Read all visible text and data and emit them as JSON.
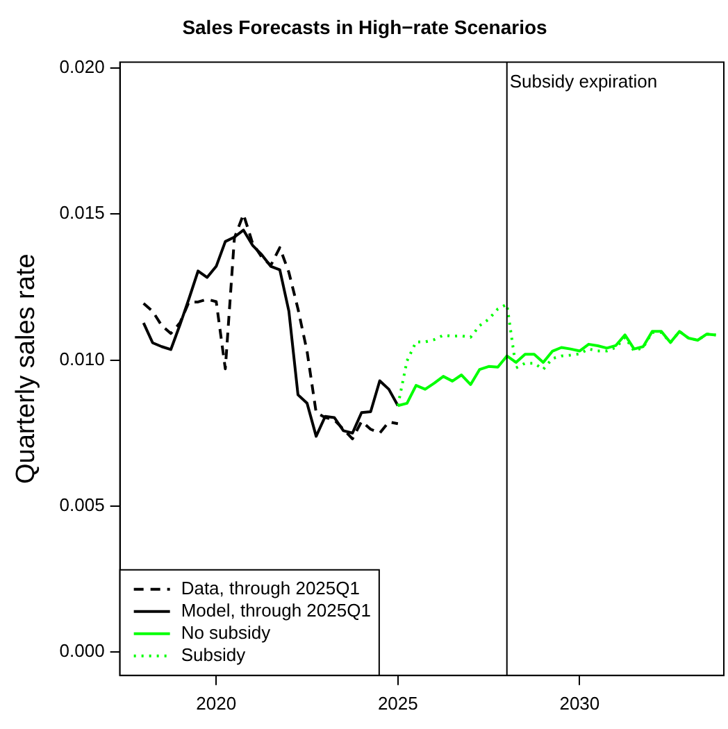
{
  "chart_data": {
    "type": "line",
    "title": "Sales Forecasts in High−rate Scenarios",
    "ylabel": "Quarterly sales rate",
    "xlim": [
      2017.35,
      2033.97
    ],
    "xticks": [
      2020,
      2025,
      2030
    ],
    "ylim": [
      -0.0008,
      0.0202
    ],
    "yticks": [
      {
        "value": 0,
        "label": "0.000"
      },
      {
        "value": 0.005,
        "label": "0.005"
      },
      {
        "value": 0.01,
        "label": "0.010"
      },
      {
        "value": 0.015,
        "label": "0.015"
      },
      {
        "value": 0.02,
        "label": "0.020"
      }
    ],
    "grid": false,
    "legend": "bottom left",
    "marker": "none",
    "ref_lines": [
      {
        "axis": "x",
        "value": 2028,
        "label": "Subsidy expiration",
        "color": "#000000",
        "line_style": "solid"
      }
    ],
    "series": [
      {
        "name": "Data, through 2025Q1",
        "color": "#000000",
        "line_style": "dashed",
        "x": [
          2018,
          2018.25,
          2018.5,
          2018.75,
          2019,
          2019.25,
          2019.5,
          2019.75,
          2020,
          2020.25,
          2020.5,
          2020.75,
          2021,
          2021.25,
          2021.5,
          2021.75,
          2022,
          2022.25,
          2022.5,
          2022.75,
          2023,
          2023.25,
          2023.5,
          2023.75,
          2024,
          2024.25,
          2024.5,
          2024.75,
          2025
        ],
        "values": [
          0.01194,
          0.01167,
          0.01118,
          0.01091,
          0.01127,
          0.01199,
          0.01199,
          0.01208,
          0.012,
          0.0097,
          0.01418,
          0.01499,
          0.014,
          0.01353,
          0.01324,
          0.01385,
          0.013,
          0.01175,
          0.0103,
          0.0082,
          0.00803,
          0.00795,
          0.00763,
          0.0073,
          0.0079,
          0.00763,
          0.0075,
          0.00788,
          0.00782
        ]
      },
      {
        "name": "Model, through 2025Q1",
        "color": "#000000",
        "line_style": "solid",
        "x": [
          2018,
          2018.25,
          2018.5,
          2018.75,
          2019,
          2019.25,
          2019.5,
          2019.75,
          2020,
          2020.25,
          2020.5,
          2020.75,
          2021,
          2021.25,
          2021.5,
          2021.75,
          2022,
          2022.25,
          2022.5,
          2022.75,
          2023,
          2023.25,
          2023.5,
          2023.75,
          2024,
          2024.25,
          2024.5,
          2024.75,
          2025
        ],
        "values": [
          0.01127,
          0.01059,
          0.01046,
          0.01036,
          0.0112,
          0.0121,
          0.01305,
          0.01283,
          0.01321,
          0.01406,
          0.01421,
          0.01445,
          0.01393,
          0.01361,
          0.01321,
          0.01309,
          0.01167,
          0.00881,
          0.00852,
          0.00739,
          0.00807,
          0.00803,
          0.00758,
          0.0075,
          0.0082,
          0.00823,
          0.00929,
          0.009,
          0.00844
        ]
      },
      {
        "name": "No subsidy",
        "color": "#00ff00",
        "line_style": "solid",
        "x": [
          2025,
          2025.25,
          2025.5,
          2025.75,
          2026,
          2026.25,
          2026.5,
          2026.75,
          2027,
          2027.25,
          2027.5,
          2027.75,
          2028,
          2028.25,
          2028.5,
          2028.75,
          2029,
          2029.25,
          2029.5,
          2029.75,
          2030,
          2030.25,
          2030.5,
          2030.75,
          2031,
          2031.25,
          2031.5,
          2031.75,
          2032,
          2032.25,
          2032.5,
          2032.75,
          2033,
          2033.25,
          2033.5,
          2033.75
        ],
        "values": [
          0.00844,
          0.00852,
          0.00913,
          0.009,
          0.00921,
          0.00944,
          0.00928,
          0.00949,
          0.00916,
          0.00968,
          0.00978,
          0.00976,
          0.01014,
          0.00992,
          0.0102,
          0.0102,
          0.00992,
          0.0103,
          0.01043,
          0.01038,
          0.01031,
          0.01054,
          0.01049,
          0.01041,
          0.0105,
          0.01086,
          0.01038,
          0.01046,
          0.01098,
          0.01098,
          0.0106,
          0.01098,
          0.01075,
          0.01068,
          0.01089,
          0.01086
        ]
      },
      {
        "name": "Subsidy",
        "color": "#00ff00",
        "line_style": "dotted",
        "x": [
          2025,
          2025.25,
          2025.5,
          2025.75,
          2026,
          2026.25,
          2026.5,
          2026.75,
          2027,
          2027.25,
          2027.5,
          2027.75,
          2028,
          2028.25,
          2028.5,
          2028.75,
          2029,
          2029.25,
          2029.5,
          2029.75,
          2030,
          2030.25,
          2030.5,
          2030.75,
          2031,
          2031.25,
          2031.5,
          2031.75,
          2032,
          2032.25,
          2032.5,
          2032.75,
          2033,
          2033.25,
          2033.5,
          2033.75
        ],
        "values": [
          0.00844,
          0.00997,
          0.01062,
          0.01062,
          0.0107,
          0.01085,
          0.01082,
          0.01083,
          0.01078,
          0.01118,
          0.0114,
          0.01175,
          0.01191,
          0.00973,
          0.00989,
          0.00989,
          0.00968,
          0.01005,
          0.01014,
          0.01017,
          0.01021,
          0.01038,
          0.01031,
          0.01031,
          0.01043,
          0.01078,
          0.01031,
          0.01043,
          0.01095,
          0.01095,
          0.0106,
          0.01098,
          0.01075,
          0.01068,
          0.01089,
          0.01086
        ]
      }
    ]
  }
}
